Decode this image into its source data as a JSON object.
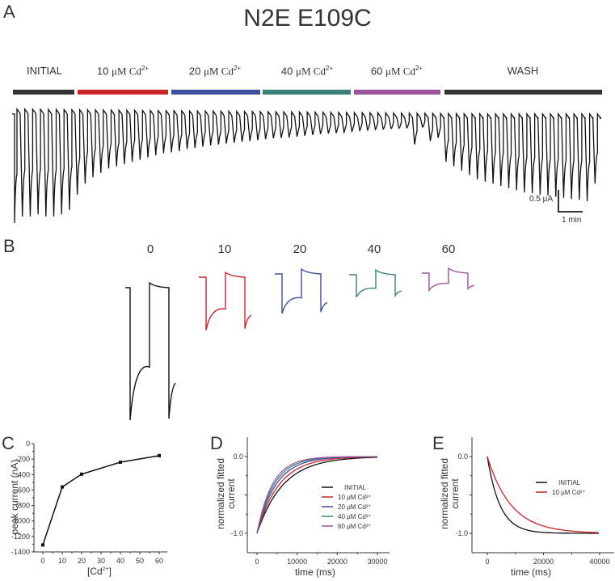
{
  "figure": {
    "title": "N2E E109C",
    "panels": [
      "A",
      "B",
      "C",
      "D",
      "E"
    ]
  },
  "panel_a": {
    "conditions": [
      {
        "label": "INITIAL",
        "unit": "",
        "color": "#333333"
      },
      {
        "label": "10 ",
        "unit": "μM Cd",
        "sup": "2+",
        "color": "#cc2229"
      },
      {
        "label": "20 ",
        "unit": "μM Cd",
        "sup": "2+",
        "color": "#3f4fa0"
      },
      {
        "label": "40 ",
        "unit": "μM Cd",
        "sup": "2+",
        "color": "#3a8277"
      },
      {
        "label": "60 ",
        "unit": "μM Cd",
        "sup": "2+",
        "color": "#a053a0"
      },
      {
        "label": "WASH",
        "unit": "",
        "color": "#333333"
      }
    ],
    "scale_bar": {
      "current_label": "0.5 μA",
      "time_label": "1 min"
    },
    "sweep_peaks_uA": [
      2.5,
      2.35,
      2.35,
      2.3,
      2.35,
      2.35,
      2.3,
      2.2,
      1.85,
      1.6,
      1.45,
      1.35,
      1.25,
      1.2,
      1.15,
      1.1,
      1.05,
      1.0,
      0.95,
      0.9,
      0.88,
      0.85,
      0.8,
      0.78,
      0.75,
      0.72,
      0.7,
      0.68,
      0.66,
      0.64,
      0.62,
      0.6,
      0.58,
      0.56,
      0.55,
      0.54,
      0.52,
      0.5,
      0.48,
      0.46,
      0.45,
      0.44,
      0.42,
      0.4,
      0.38,
      0.37,
      0.36,
      0.35,
      0.34,
      0.33,
      0.32,
      0.7,
      0.3,
      0.62,
      0.55,
      1.1,
      1.2,
      1.3,
      1.4,
      1.5,
      1.55,
      1.6,
      1.65,
      1.7,
      1.75,
      1.8,
      1.82,
      1.85,
      1.87,
      1.9,
      1.92,
      1.95,
      1.97,
      2.0,
      1.6
    ]
  },
  "panel_b": {
    "concentrations": [
      {
        "label": "0",
        "color": "#111111",
        "depth": 1.0
      },
      {
        "label": "10",
        "color": "#cc2229",
        "depth": 0.4
      },
      {
        "label": "20",
        "color": "#3f4fa0",
        "depth": 0.3
      },
      {
        "label": "40",
        "color": "#3a8277",
        "depth": 0.17
      },
      {
        "label": "60",
        "color": "#a053a0",
        "depth": 0.13
      }
    ]
  },
  "chart_data": [
    {
      "id": "C",
      "type": "line",
      "title": "",
      "xlabel": "[Cd2+]",
      "ylabel": "peak current (nA)",
      "x": [
        0,
        10,
        20,
        40,
        60
      ],
      "values": [
        -1310,
        -560,
        -395,
        -240,
        -155
      ],
      "xlim": [
        -5,
        65
      ],
      "ylim": [
        -1400,
        0
      ],
      "xticks": [
        0,
        10,
        20,
        30,
        40,
        50,
        60
      ],
      "yticks": [
        0,
        -200,
        -400,
        -600,
        -800,
        -1000,
        -1200,
        -1400
      ],
      "grid": false,
      "marker": "square"
    },
    {
      "id": "D",
      "type": "line",
      "title": "",
      "xlabel": "time (ms)",
      "ylabel": "normalized fitted current",
      "xlim": [
        -3000,
        32000
      ],
      "ylim": [
        -1.25,
        0.25
      ],
      "xticks": [
        0,
        10000,
        20000,
        30000
      ],
      "yticks_labeled": [
        0.0,
        -1.0
      ],
      "legend_position": "right",
      "series": [
        {
          "name": "INITIAL",
          "color": "#111111",
          "tau_ms": 6500,
          "x_end": 30000
        },
        {
          "name": "10 μM Cd2+",
          "color": "#cc2229",
          "tau_ms": 5500,
          "x_end": 30000
        },
        {
          "name": "20 μM Cd2+",
          "color": "#3f4fa0",
          "tau_ms": 4700,
          "x_end": 30000
        },
        {
          "name": "40 μM Cd2+",
          "color": "#3a8277",
          "tau_ms": 4200,
          "x_end": 30000
        },
        {
          "name": "60 μM Cd2+",
          "color": "#a053a0",
          "tau_ms": 3800,
          "x_end": 30000
        }
      ],
      "model": "y = -exp(-t/tau)"
    },
    {
      "id": "E",
      "type": "line",
      "title": "",
      "xlabel": "time (ms)",
      "ylabel": "normalized fitted current",
      "xlim": [
        -5000,
        45000
      ],
      "ylim": [
        -1.25,
        0.25
      ],
      "xticks": [
        0,
        20000,
        40000
      ],
      "yticks_labeled": [
        0.0,
        -1.0
      ],
      "legend_position": "right",
      "series": [
        {
          "name": "INITIAL",
          "color": "#111111",
          "tau_ms": 4500,
          "x_end": 40000
        },
        {
          "name": "10 μM Cd2+",
          "color": "#cc2229",
          "tau_ms": 8500,
          "x_end": 40000
        }
      ],
      "model": "y = exp(-t/tau) - 1"
    }
  ],
  "labels": {
    "c_ylabel": "peak current (nA)",
    "c_xlabel_main": "[Cd",
    "c_xlabel_sup": "2+",
    "c_xlabel_end": "]",
    "d_ylabel_1": "normalized fitted",
    "d_ylabel_2": "current",
    "d_xlabel": "time (ms)",
    "e_ylabel_1": "normalized fitted",
    "e_ylabel_2": "current",
    "e_xlabel": "time (ms)"
  }
}
